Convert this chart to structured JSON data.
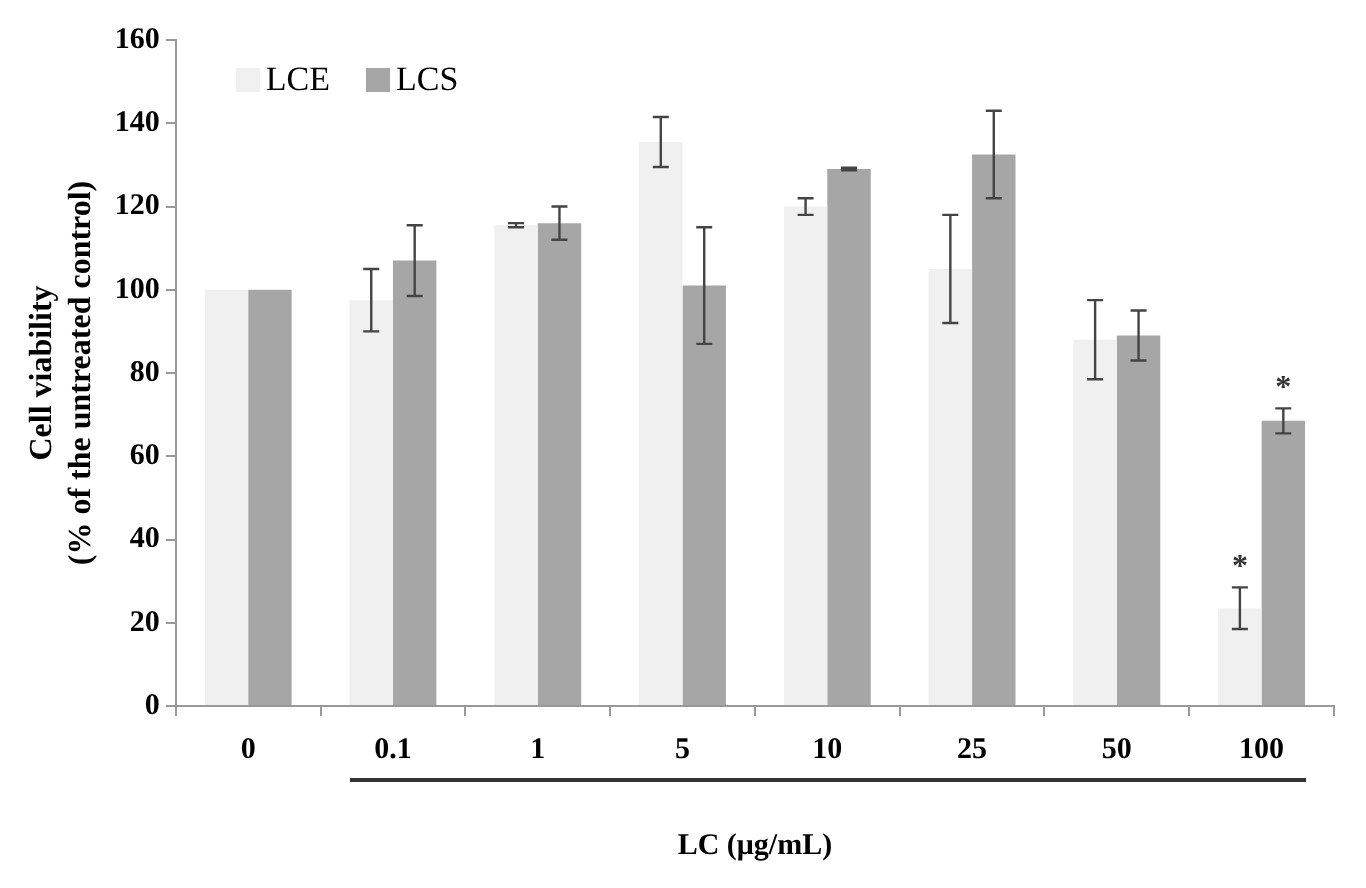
{
  "chart_data": {
    "type": "bar",
    "xlabel": "LC (μg/mL)",
    "ylabel": "Cell viability\n(% of the untreated control)",
    "categories": [
      "0",
      "0.1",
      "1",
      "5",
      "10",
      "25",
      "50",
      "100"
    ],
    "series": [
      {
        "name": "LCE",
        "color": "#f0f0f0",
        "values": [
          100,
          97.5,
          115.5,
          135.5,
          120,
          105,
          88,
          23.5
        ],
        "errors": [
          null,
          7.5,
          0.5,
          6,
          2,
          13,
          9.5,
          5
        ]
      },
      {
        "name": "LCS",
        "color": "#a6a6a6",
        "values": [
          100,
          107,
          116,
          101,
          129,
          132.5,
          89,
          68.5
        ],
        "errors": [
          null,
          8.5,
          4,
          14,
          0.3,
          10.5,
          6,
          3
        ]
      }
    ],
    "ylim": [
      0,
      160
    ],
    "yticks": [
      0,
      20,
      40,
      60,
      80,
      100,
      120,
      140,
      160
    ],
    "legend": "top left",
    "annotations": [
      {
        "text": "*",
        "x": "100",
        "y": 23.5
      },
      {
        "text": "*",
        "x": "100",
        "y": 68.5
      }
    ]
  }
}
